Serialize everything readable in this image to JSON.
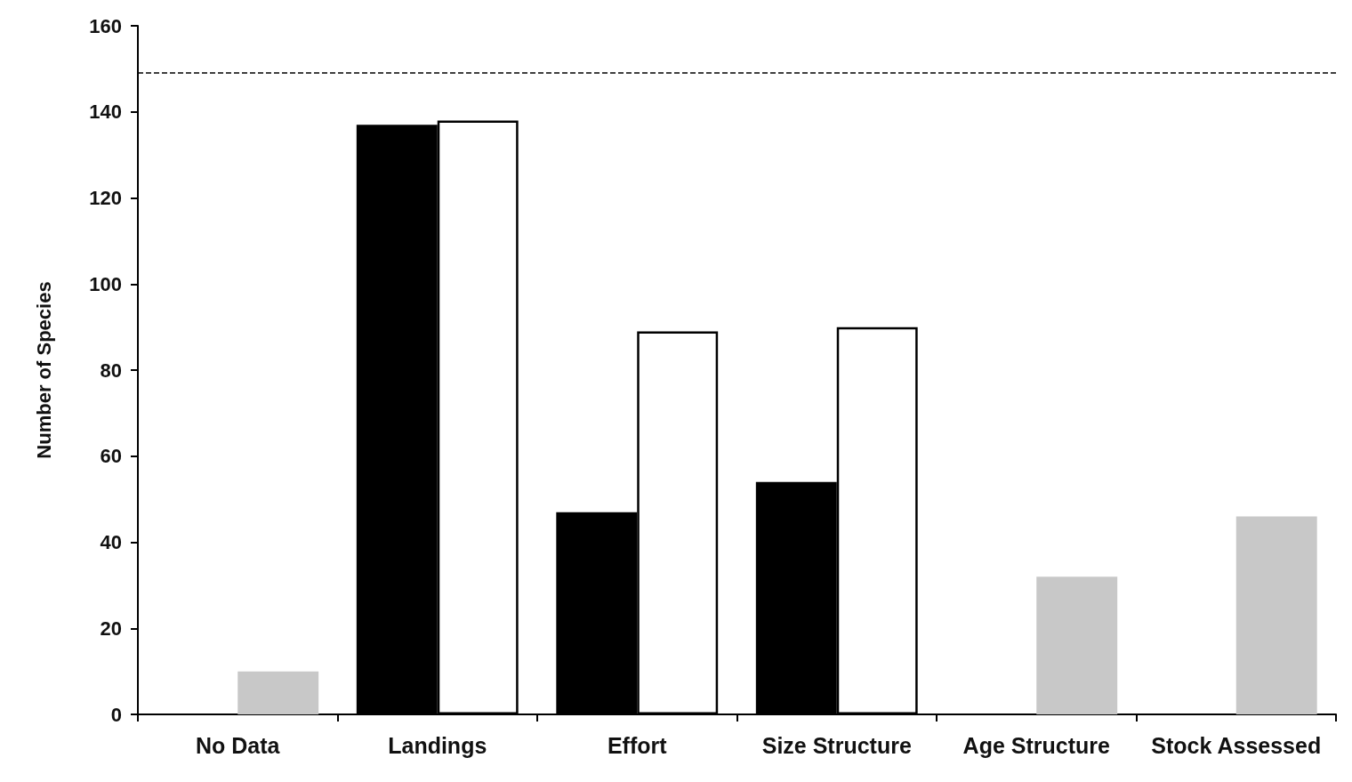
{
  "chart_data": {
    "type": "bar",
    "ylabel": "Number of Species",
    "categories": [
      "No Data",
      "Landings",
      "Effort",
      "Size Structure",
      "Age Structure",
      "Stock Assessed"
    ],
    "series": [
      {
        "color": "#000000",
        "values": [
          null,
          137,
          47,
          54,
          null,
          null
        ]
      },
      {
        "colors": [
          "#c8c8c8",
          "#ffffff",
          "#ffffff",
          "#ffffff",
          "#c8c8c8",
          "#c8c8c8"
        ],
        "values": [
          10,
          138,
          89,
          90,
          32,
          46
        ]
      }
    ],
    "ylim": [
      0,
      160
    ],
    "yticks": [
      0,
      20,
      40,
      60,
      80,
      100,
      120,
      140,
      160
    ],
    "grid": false,
    "ref_lines": [
      {
        "axis": "y",
        "value": 149,
        "color": "#000000",
        "line_style": "dashed"
      }
    ]
  }
}
